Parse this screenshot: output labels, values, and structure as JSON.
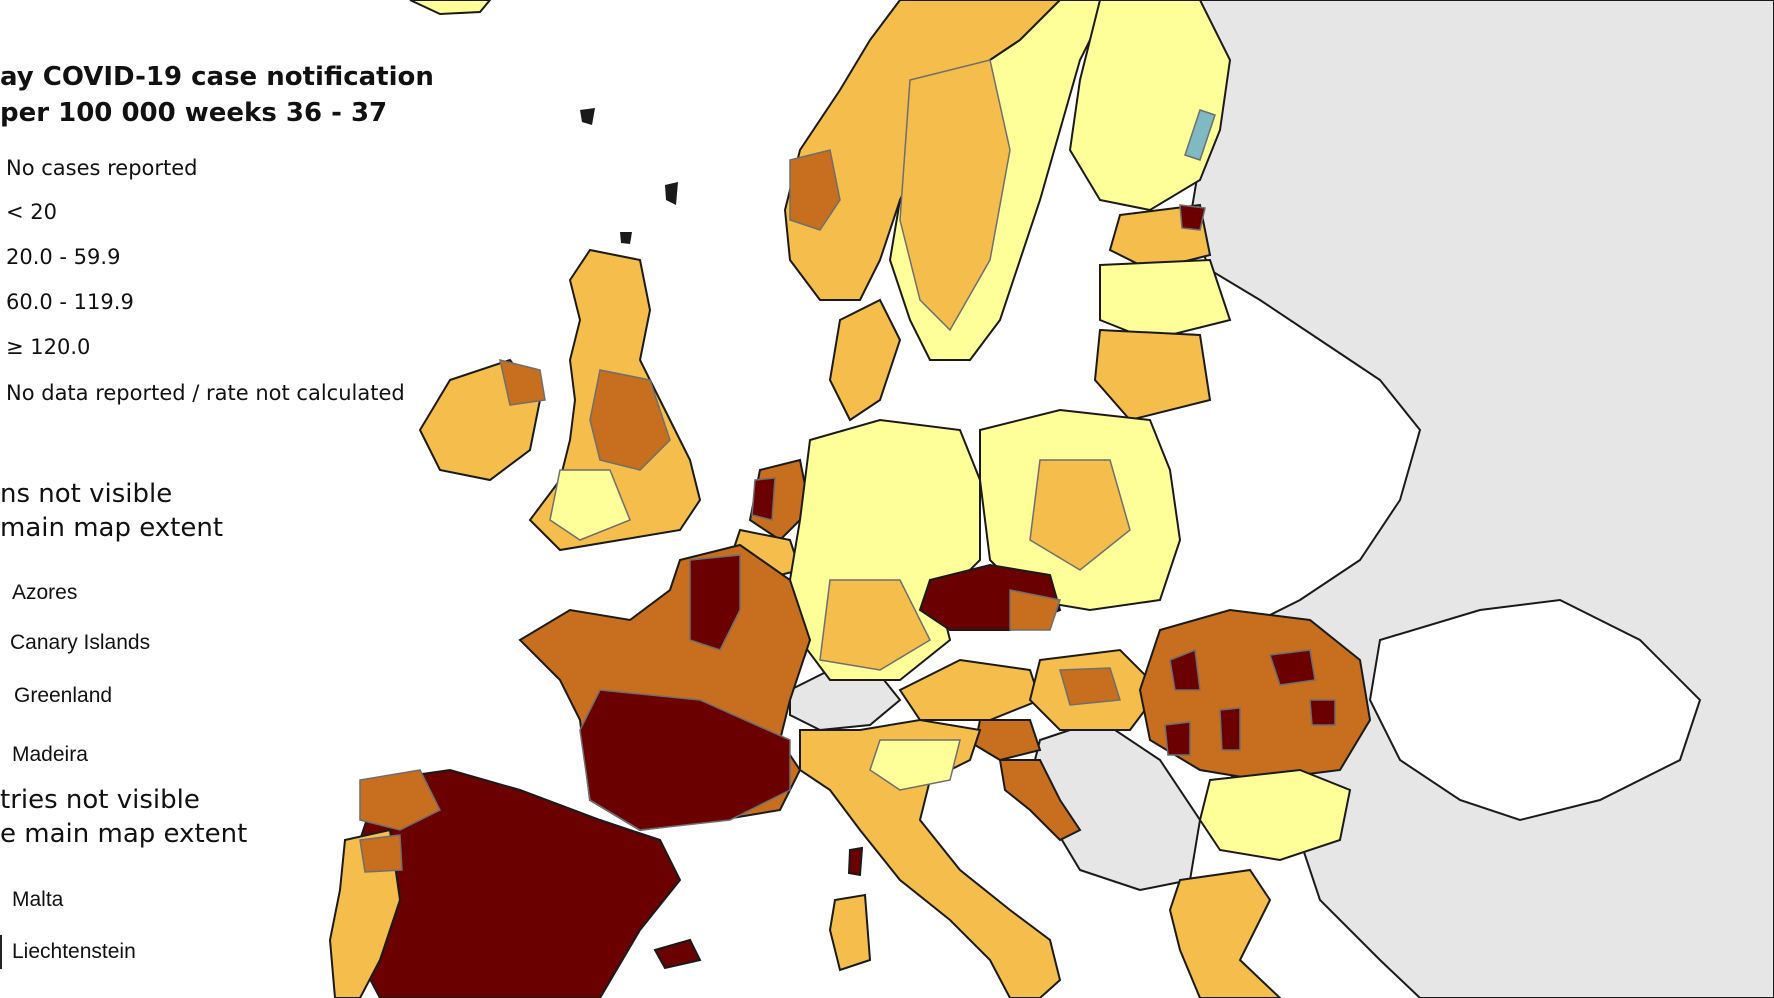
{
  "title": {
    "line1": "ay COVID-19 case notification",
    "line2": "per 100 000 weeks 36 - 37"
  },
  "legend": [
    {
      "label": "No cases reported",
      "color": "#7fb9c2"
    },
    {
      "label": "< 20",
      "color": "#ffff9a"
    },
    {
      "label": "20.0 - 59.9",
      "color": "#f5bd4c"
    },
    {
      "label": "60.0 - 119.9",
      "color": "#c86e1f"
    },
    {
      "label": "≥ 120.0",
      "color": "#6b0000"
    },
    {
      "label": "No data reported / rate not calculated",
      "color": "#d8d8d8"
    }
  ],
  "regions_not_visible": {
    "line1": "ns not visible",
    "line2": "main map extent",
    "items": [
      "Azores",
      "Canary Islands",
      "Greenland",
      "Madeira"
    ]
  },
  "countries_not_visible": {
    "line1": "tries not visible",
    "line2": "e main map extent",
    "items": [
      "Malta",
      "Liechtenstein"
    ]
  },
  "colors": {
    "sea": "#ffffff",
    "non_eu_land": "#e6e6e6",
    "border": "#1a1a1a",
    "internal_border": "#6e6e6e"
  }
}
